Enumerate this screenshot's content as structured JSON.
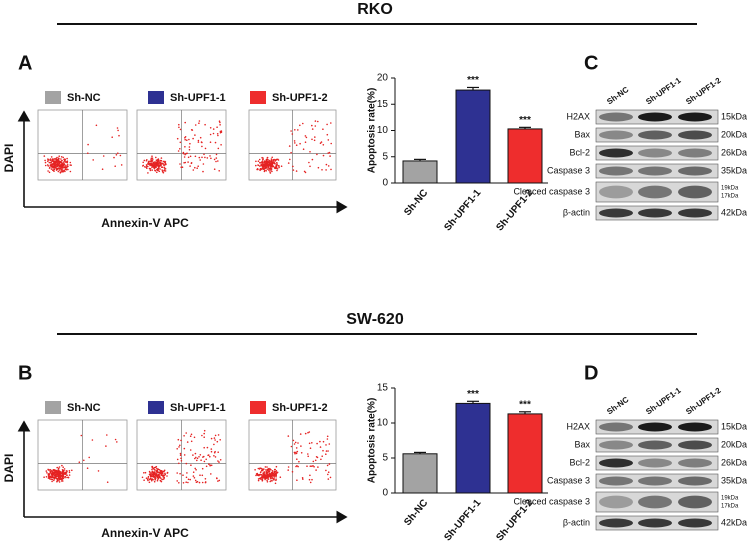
{
  "figure": [
    {
      "title": "RKO",
      "flow_panel": "A",
      "blot_panel": "C",
      "flow_ylabel": "DAPI",
      "flow_xlabel": "Annexin-V APC",
      "blot_lanes": [
        "Sh-NC",
        "Sh-UPF1-1",
        "Sh-UPF1-2"
      ],
      "blot_rows": [
        {
          "protein": "H2AX",
          "size": [
            "15kDa"
          ]
        },
        {
          "protein": "Bax",
          "size": [
            "20kDa"
          ]
        },
        {
          "protein": "Bcl-2",
          "size": [
            "26kDa"
          ]
        },
        {
          "protein": "Caspase 3",
          "size": [
            "35kDa"
          ]
        },
        {
          "protein": "Cleaced caspase 3",
          "size": [
            "19kDa",
            "17kDa"
          ]
        },
        {
          "protein": "β-actin",
          "size": [
            "42kDa"
          ]
        }
      ]
    },
    {
      "title": "SW-620",
      "flow_panel": "B",
      "blot_panel": "D",
      "flow_ylabel": "DAPI",
      "flow_xlabel": "Annexin-V APC",
      "blot_lanes": [
        "Sh-NC",
        "Sh-UPF1-1",
        "Sh-UPF1-2"
      ],
      "blot_rows": [
        {
          "protein": "H2AX",
          "size": [
            "15kDa"
          ]
        },
        {
          "protein": "Bax",
          "size": [
            "20kDa"
          ]
        },
        {
          "protein": "Bcl-2",
          "size": [
            "26kDa"
          ]
        },
        {
          "protein": "Caspase 3",
          "size": [
            "35kDa"
          ]
        },
        {
          "protein": "Cleaced caspase 3",
          "size": [
            "19kDa",
            "17kDa"
          ]
        },
        {
          "protein": "β-actin",
          "size": [
            "42kDa"
          ]
        }
      ]
    }
  ],
  "chart_data": [
    {
      "type": "bar",
      "ylabel": "Apoptosis rate(%)",
      "categories": [
        "Sh-NC",
        "Sh-UPF1-1",
        "Sh-UPF1-2"
      ],
      "values": [
        4.2,
        17.7,
        10.3
      ],
      "errors": [
        0.3,
        0.5,
        0.3
      ],
      "colors": [
        "#a3a3a3",
        "#2e3192",
        "#ee2d2d"
      ],
      "bar_labels": [
        null,
        "***",
        "***"
      ],
      "ylim": [
        0,
        20
      ],
      "yticks": [
        0,
        5,
        10,
        15,
        20
      ]
    },
    {
      "type": "bar",
      "ylabel": "Apoptosis rate(%)",
      "categories": [
        "Sh-NC",
        "Sh-UPF1-1",
        "Sh-UPF1-2"
      ],
      "values": [
        5.6,
        12.8,
        11.3
      ],
      "errors": [
        0.2,
        0.3,
        0.3
      ],
      "colors": [
        "#a3a3a3",
        "#2e3192",
        "#ee2d2d"
      ],
      "bar_labels": [
        null,
        "***",
        "***"
      ],
      "ylim": [
        0,
        15
      ],
      "yticks": [
        0,
        5,
        10,
        15
      ]
    }
  ]
}
